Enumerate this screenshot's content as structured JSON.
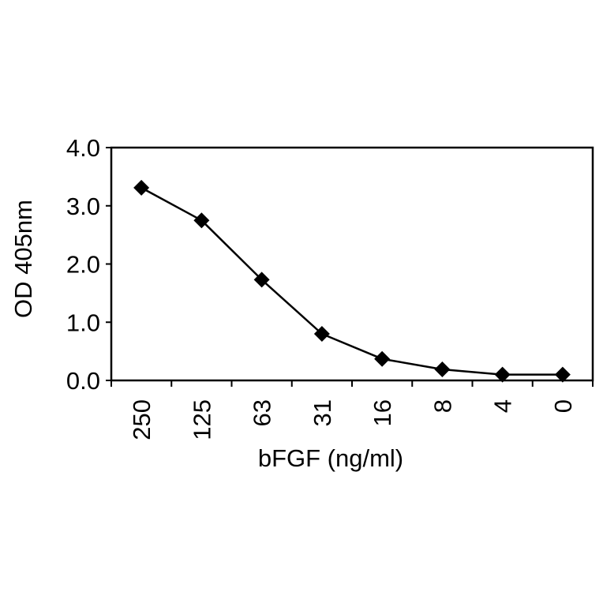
{
  "chart_data": {
    "type": "line",
    "title": "",
    "xlabel": "bFGF (ng/ml)",
    "ylabel": "OD 405nm",
    "categories": [
      "250",
      "125",
      "63",
      "31",
      "16",
      "8",
      "4",
      "0"
    ],
    "series": [
      {
        "values": [
          3.31,
          2.75,
          1.73,
          0.8,
          0.37,
          0.19,
          0.1,
          0.1
        ],
        "marker": "diamond",
        "color": "#000000"
      }
    ],
    "ylim": [
      0,
      4
    ],
    "yticks": [
      "0.0",
      "1.0",
      "2.0",
      "3.0",
      "4.0"
    ],
    "grid": false,
    "legend": "none"
  }
}
